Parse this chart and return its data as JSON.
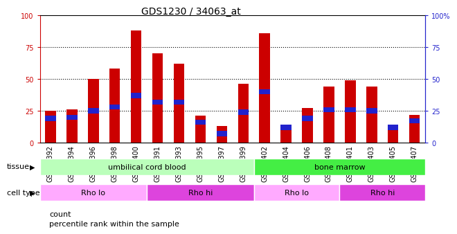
{
  "title": "GDS1230 / 34063_at",
  "samples": [
    "GSM51392",
    "GSM51394",
    "GSM51396",
    "GSM51398",
    "GSM51400",
    "GSM51391",
    "GSM51393",
    "GSM51395",
    "GSM51397",
    "GSM51399",
    "GSM51402",
    "GSM51404",
    "GSM51406",
    "GSM51408",
    "GSM51401",
    "GSM51403",
    "GSM51405",
    "GSM51407"
  ],
  "count_values": [
    25,
    26,
    50,
    58,
    88,
    70,
    62,
    21,
    13,
    46,
    86,
    13,
    27,
    44,
    49,
    44,
    12,
    22
  ],
  "percentile_values": [
    19,
    20,
    25,
    28,
    37,
    32,
    32,
    16,
    7,
    24,
    40,
    12,
    19,
    26,
    26,
    25,
    12,
    17
  ],
  "bar_color_red": "#cc0000",
  "bar_color_blue": "#2222cc",
  "tissue_groups": [
    {
      "label": "umbilical cord blood",
      "start": 0,
      "end": 9,
      "color": "#bbffbb"
    },
    {
      "label": "bone marrow",
      "start": 10,
      "end": 17,
      "color": "#44ee44"
    }
  ],
  "cell_type_groups": [
    {
      "label": "Rho lo",
      "start": 0,
      "end": 4,
      "color": "#ffaaff"
    },
    {
      "label": "Rho hi",
      "start": 5,
      "end": 9,
      "color": "#dd44dd"
    },
    {
      "label": "Rho lo",
      "start": 10,
      "end": 13,
      "color": "#ffaaff"
    },
    {
      "label": "Rho hi",
      "start": 14,
      "end": 17,
      "color": "#dd44dd"
    }
  ],
  "ylim": [
    0,
    100
  ],
  "yticks": [
    0,
    25,
    50,
    75,
    100
  ],
  "legend_items": [
    {
      "label": "count",
      "color": "#cc0000"
    },
    {
      "label": "percentile rank within the sample",
      "color": "#2222cc"
    }
  ],
  "title_fontsize": 10,
  "tick_fontsize": 7,
  "bar_width": 0.5,
  "blue_bar_height": 4
}
